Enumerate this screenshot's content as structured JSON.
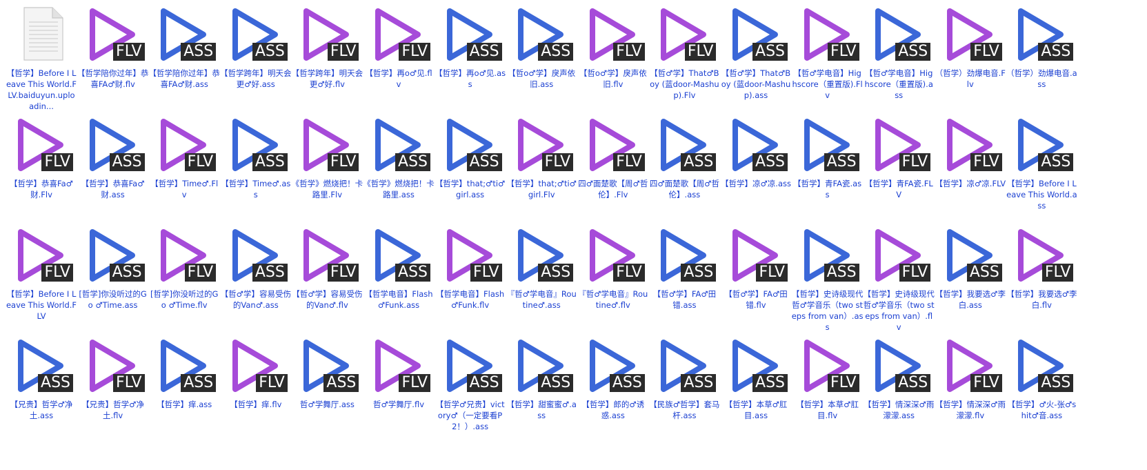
{
  "colors": {
    "flv_triangle": "#a64bd9",
    "ass_triangle": "#3b67d8",
    "badge_bg": "#2b2b2b",
    "label_text": "#1a3fd1"
  },
  "files": [
    {
      "label": "【哲学】Before I Leave This World.FLV.baiduyun.uploadin...",
      "type": "doc",
      "badge": ""
    },
    {
      "label": "【哲学陪你过年】恭喜FA♂财.flv",
      "type": "flv",
      "badge": "FLV"
    },
    {
      "label": "【哲学陪你过年】恭喜FA♂财.ass",
      "type": "ass",
      "badge": "ASS"
    },
    {
      "label": "【哲学跨年】明天会更♂好.ass",
      "type": "ass",
      "badge": "ASS"
    },
    {
      "label": "【哲学跨年】明天会更♂好.flv",
      "type": "flv",
      "badge": "FLV"
    },
    {
      "label": "【哲学】再o♂见.flv",
      "type": "flv",
      "badge": "FLV"
    },
    {
      "label": "【哲学】再o♂见.ass",
      "type": "ass",
      "badge": "ASS"
    },
    {
      "label": "【哲o♂学】戾声依旧.ass",
      "type": "ass",
      "badge": "ASS"
    },
    {
      "label": "【哲o♂学】戾声依旧.flv",
      "type": "flv",
      "badge": "FLV"
    },
    {
      "label": "【哲♂学】That♂Boy (蓝door-Mashup).Flv",
      "type": "flv",
      "badge": "FLV"
    },
    {
      "label": "【哲♂学】That♂Boy (蓝door-Mashup).ass",
      "type": "ass",
      "badge": "ASS"
    },
    {
      "label": "【哲♂学电音】Highscore（重置版).Flv",
      "type": "flv",
      "badge": "FLV"
    },
    {
      "label": "【哲♂学电音】Highscore（重置版).ass",
      "type": "ass",
      "badge": "ASS"
    },
    {
      "label": "（哲学）劲爆电音.Flv",
      "type": "flv",
      "badge": "FLV"
    },
    {
      "label": "（哲学）劲爆电音.ass",
      "type": "ass",
      "badge": "ASS"
    },
    {
      "label": "【哲学】恭喜Fa♂财.Flv",
      "type": "flv",
      "badge": "FLV"
    },
    {
      "label": "【哲学】恭喜Fa♂财.ass",
      "type": "ass",
      "badge": "ASS"
    },
    {
      "label": "【哲学】Time♂.Flv",
      "type": "flv",
      "badge": "FLV"
    },
    {
      "label": "【哲学】Time♂.ass",
      "type": "ass",
      "badge": "ASS"
    },
    {
      "label": "《哲学》燃烧把！卡路里.Flv",
      "type": "flv",
      "badge": "FLV"
    },
    {
      "label": "《哲学》燃烧把！卡路里.ass",
      "type": "ass",
      "badge": "ASS"
    },
    {
      "label": "【哲学】that;♂ti♂girl.ass",
      "type": "ass",
      "badge": "ASS"
    },
    {
      "label": "【哲学】that;♂ti♂girl.Flv",
      "type": "flv",
      "badge": "FLV"
    },
    {
      "label": "四♂面楚歌【周♂哲伦】.Flv",
      "type": "flv",
      "badge": "FLV"
    },
    {
      "label": "四♂面楚歌【周♂哲伦】.ass",
      "type": "ass",
      "badge": "ASS"
    },
    {
      "label": "【哲学】凉♂凉.ass",
      "type": "ass",
      "badge": "ASS"
    },
    {
      "label": "【哲学】青FA瓷.ass",
      "type": "ass",
      "badge": "ASS"
    },
    {
      "label": "【哲学】青FA瓷.FLV",
      "type": "flv",
      "badge": "FLV"
    },
    {
      "label": "【哲学】凉♂凉.FLV",
      "type": "flv",
      "badge": "FLV"
    },
    {
      "label": "【哲学】Before I Leave This World.ass",
      "type": "ass",
      "badge": "ASS"
    },
    {
      "label": "【哲学】Before I Leave This World.FLV",
      "type": "flv",
      "badge": "FLV"
    },
    {
      "label": "[哲学]你没听过的Go ♂Time.ass",
      "type": "ass",
      "badge": "ASS"
    },
    {
      "label": "[哲学]你没听过的Go ♂Time.flv",
      "type": "flv",
      "badge": "FLV"
    },
    {
      "label": "【哲♂学】容易受伤的Van♂.ass",
      "type": "ass",
      "badge": "ASS"
    },
    {
      "label": "【哲♂学】容易受伤的Van♂.flv",
      "type": "flv",
      "badge": "FLV"
    },
    {
      "label": "【哲学电音】Flash♂Funk.ass",
      "type": "ass",
      "badge": "ASS"
    },
    {
      "label": "【哲学电音】Flash♂Funk.flv",
      "type": "flv",
      "badge": "FLV"
    },
    {
      "label": "『哲♂学电音』Routine♂.ass",
      "type": "ass",
      "badge": "ASS"
    },
    {
      "label": "『哲♂学电音』Routine♂.flv",
      "type": "flv",
      "badge": "FLV"
    },
    {
      "label": "【哲♂学】FA♂田错.ass",
      "type": "ass",
      "badge": "ASS"
    },
    {
      "label": "【哲♂学】FA♂田错.flv",
      "type": "flv",
      "badge": "FLV"
    },
    {
      "label": "【哲学】史诗级现代哲♂学音乐（two steps from van）.ass",
      "type": "ass",
      "badge": "ASS"
    },
    {
      "label": "【哲学】史诗级现代哲♂学音乐（two steps from van）.flv",
      "type": "flv",
      "badge": "FLV"
    },
    {
      "label": "【哲学】我要选♂李白.ass",
      "type": "ass",
      "badge": "ASS"
    },
    {
      "label": "【哲学】我要选♂李白.flv",
      "type": "flv",
      "badge": "FLV"
    },
    {
      "label": "【兄贵】哲学♂净土.ass",
      "type": "ass",
      "badge": "ASS"
    },
    {
      "label": "【兄贵】哲学♂净土.flv",
      "type": "flv",
      "badge": "FLV"
    },
    {
      "label": "【哲学】痒.ass",
      "type": "ass",
      "badge": "ASS"
    },
    {
      "label": "【哲学】痒.flv",
      "type": "flv",
      "badge": "FLV"
    },
    {
      "label": "哲♂学舞厅.ass",
      "type": "ass",
      "badge": "ASS"
    },
    {
      "label": "哲♂学舞厅.flv",
      "type": "flv",
      "badge": "FLV"
    },
    {
      "label": "【哲学♂兄贵】victory♂（一定要看P2！）.ass",
      "type": "ass",
      "badge": "ASS"
    },
    {
      "label": "【哲学】甜蜜蜜♂.ass",
      "type": "ass",
      "badge": "ASS"
    },
    {
      "label": "【哲学】郎的♂诱惑.ass",
      "type": "ass",
      "badge": "ASS"
    },
    {
      "label": "【民族♂哲学】套马杆.ass",
      "type": "ass",
      "badge": "ASS"
    },
    {
      "label": "【哲学】本草♂肛目.ass",
      "type": "ass",
      "badge": "ASS"
    },
    {
      "label": "【哲学】本草♂肛目.flv",
      "type": "flv",
      "badge": "FLV"
    },
    {
      "label": "【哲学】情深深♂雨濛濛.ass",
      "type": "ass",
      "badge": "ASS"
    },
    {
      "label": "【哲学】情深深♂雨濛濛.flv",
      "type": "flv",
      "badge": "FLV"
    },
    {
      "label": "【哲学】♂火-张♂shit♂音.ass",
      "type": "ass",
      "badge": "ASS"
    }
  ]
}
